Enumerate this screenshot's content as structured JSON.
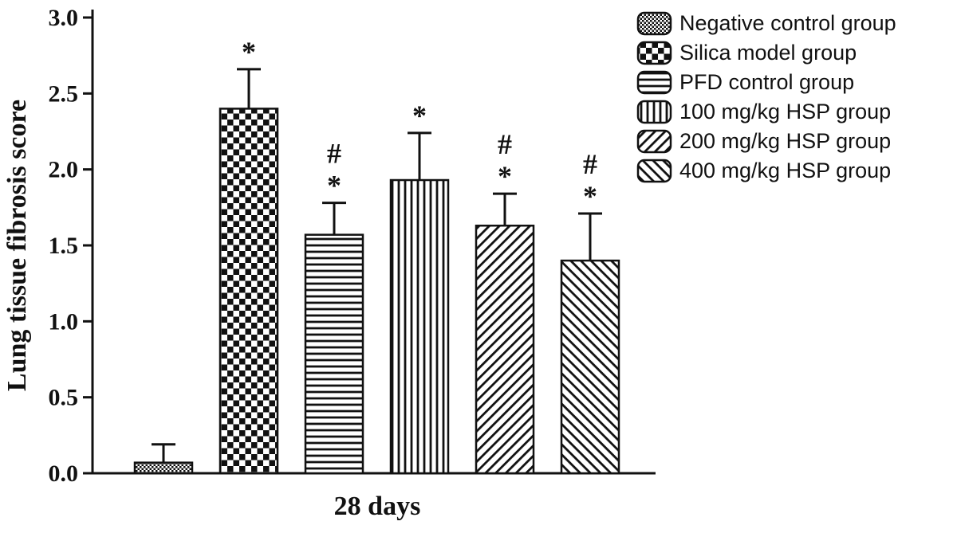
{
  "chart_data": {
    "type": "bar",
    "title": "",
    "xlabel": "28 days",
    "ylabel": "Lung tissue fibrosis score",
    "ylim": [
      0,
      3.0
    ],
    "ytick_step": 0.5,
    "yticks": [
      "0.0",
      "0.5",
      "1.0",
      "1.5",
      "2.0",
      "2.5",
      "3.0"
    ],
    "categories": [
      "28 days"
    ],
    "grid": false,
    "legend_position": "top-right",
    "colors": {
      "bar_fill": "#ffffff",
      "stroke": "#111111"
    },
    "series": [
      {
        "name": "Negative control group",
        "pattern": "fine-checker",
        "value": 0.07,
        "error": 0.12,
        "annotations": []
      },
      {
        "name": "Silica model group",
        "pattern": "checker",
        "value": 2.4,
        "error": 0.26,
        "annotations": [
          "*"
        ]
      },
      {
        "name": "PFD control group",
        "pattern": "horizontal-lines",
        "value": 1.57,
        "error": 0.21,
        "annotations": [
          "#",
          "*"
        ]
      },
      {
        "name": "100 mg/kg HSP group",
        "pattern": "vertical-lines",
        "value": 1.93,
        "error": 0.31,
        "annotations": [
          "*"
        ]
      },
      {
        "name": "200 mg/kg HSP group",
        "pattern": "diagonal-lines-forward",
        "value": 1.63,
        "error": 0.21,
        "annotations": [
          "#",
          "*"
        ]
      },
      {
        "name": "400 mg/kg HSP group",
        "pattern": "diagonal-lines-backward",
        "value": 1.4,
        "error": 0.31,
        "annotations": [
          "#",
          "*"
        ]
      }
    ]
  }
}
